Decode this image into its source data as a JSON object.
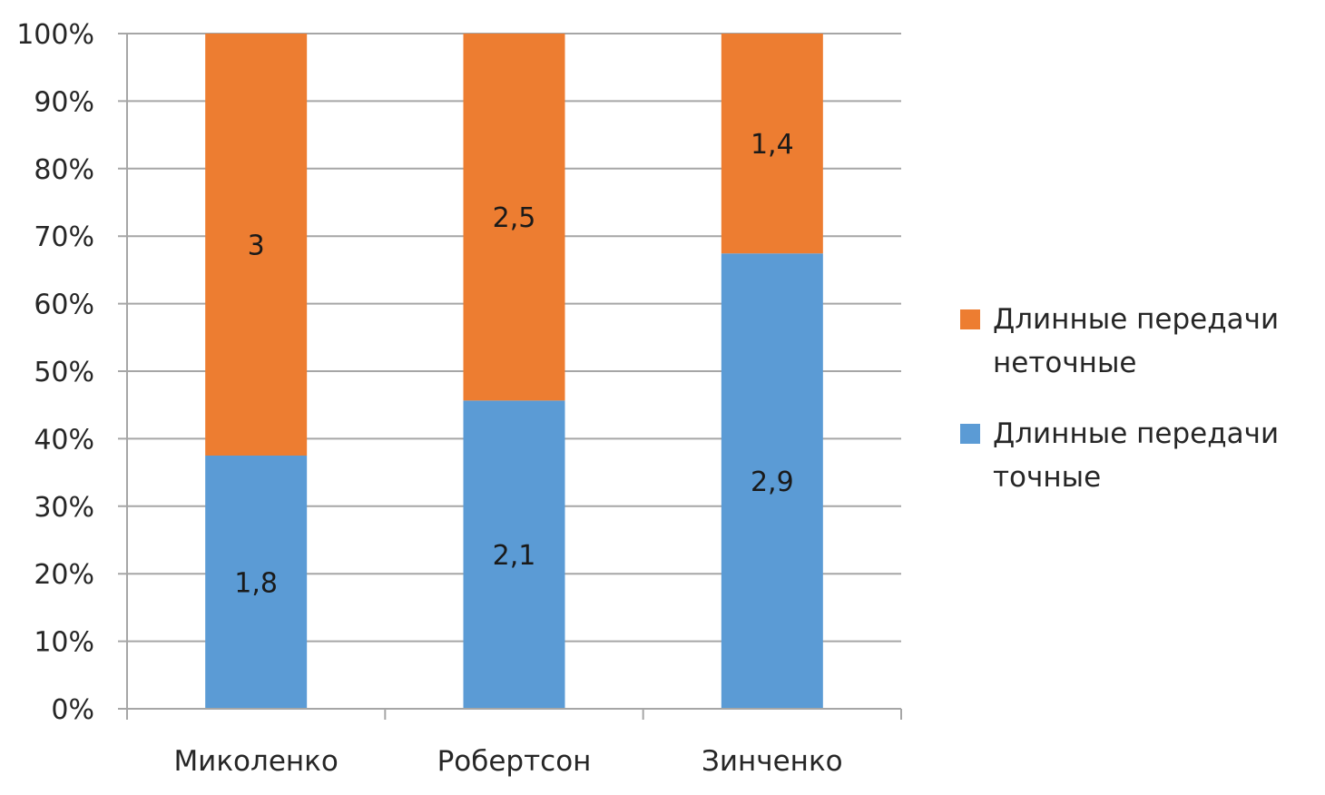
{
  "chart_data": {
    "type": "bar",
    "stacked": "percent",
    "categories": [
      "Миколенко",
      "Робертсон",
      "Зинченко"
    ],
    "series": [
      {
        "name": "Длинные передачи точные",
        "values": [
          1.8,
          2.1,
          2.9
        ],
        "labels": [
          "1,8",
          "2,1",
          "2,9"
        ],
        "color": "#5b9bd5"
      },
      {
        "name": "Длинные передачи неточные",
        "values": [
          3,
          2.5,
          1.4
        ],
        "labels": [
          "3",
          "2,5",
          "1,4"
        ],
        "color": "#ed7d31"
      }
    ],
    "y_ticks": [
      "0%",
      "10%",
      "20%",
      "30%",
      "40%",
      "50%",
      "60%",
      "70%",
      "80%",
      "90%",
      "100%"
    ],
    "ylim": [
      0,
      100
    ],
    "grid": true,
    "legend_position": "right",
    "legend": [
      "Длинные передачи неточные",
      "Длинные передачи точные"
    ],
    "colors": {
      "gridline": "#a6a6a6",
      "axis": "#a6a6a6",
      "text": "#262626"
    }
  }
}
